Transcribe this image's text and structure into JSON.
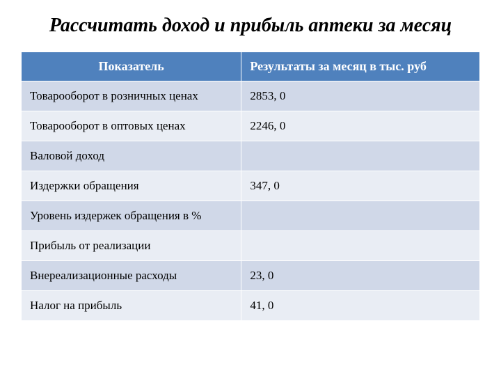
{
  "title": "Рассчитать доход и прибыль аптеки за месяц",
  "table": {
    "type": "table",
    "columns": [
      {
        "label": "Показатель",
        "width_pct": 48,
        "align": "center"
      },
      {
        "label": "Результаты  за месяц  в тыс. руб",
        "width_pct": 52,
        "align": "left"
      }
    ],
    "rows": [
      {
        "indicator": "Товарооборот  в розничных ценах",
        "value": "2853, 0"
      },
      {
        "indicator": "Товарооборот в оптовых ценах",
        "value": "2246, 0"
      },
      {
        "indicator": "Валовой доход",
        "value": ""
      },
      {
        "indicator": "Издержки обращения",
        "value": "347, 0"
      },
      {
        "indicator": "Уровень издержек обращения в %",
        "value": ""
      },
      {
        "indicator": "Прибыль от реализации",
        "value": ""
      },
      {
        "indicator": "Внереализационные расходы",
        "value": "23, 0"
      },
      {
        "indicator": "Налог на прибыль",
        "value": "41, 0"
      }
    ],
    "header_bg_color": "#4f81bd",
    "header_text_color": "#ffffff",
    "row_odd_bg_color": "#d0d8e8",
    "row_even_bg_color": "#e9edf4",
    "border_color": "#ffffff",
    "title_fontsize": 28,
    "header_fontsize": 18,
    "cell_fontsize": 17,
    "font_family": "Times New Roman"
  }
}
